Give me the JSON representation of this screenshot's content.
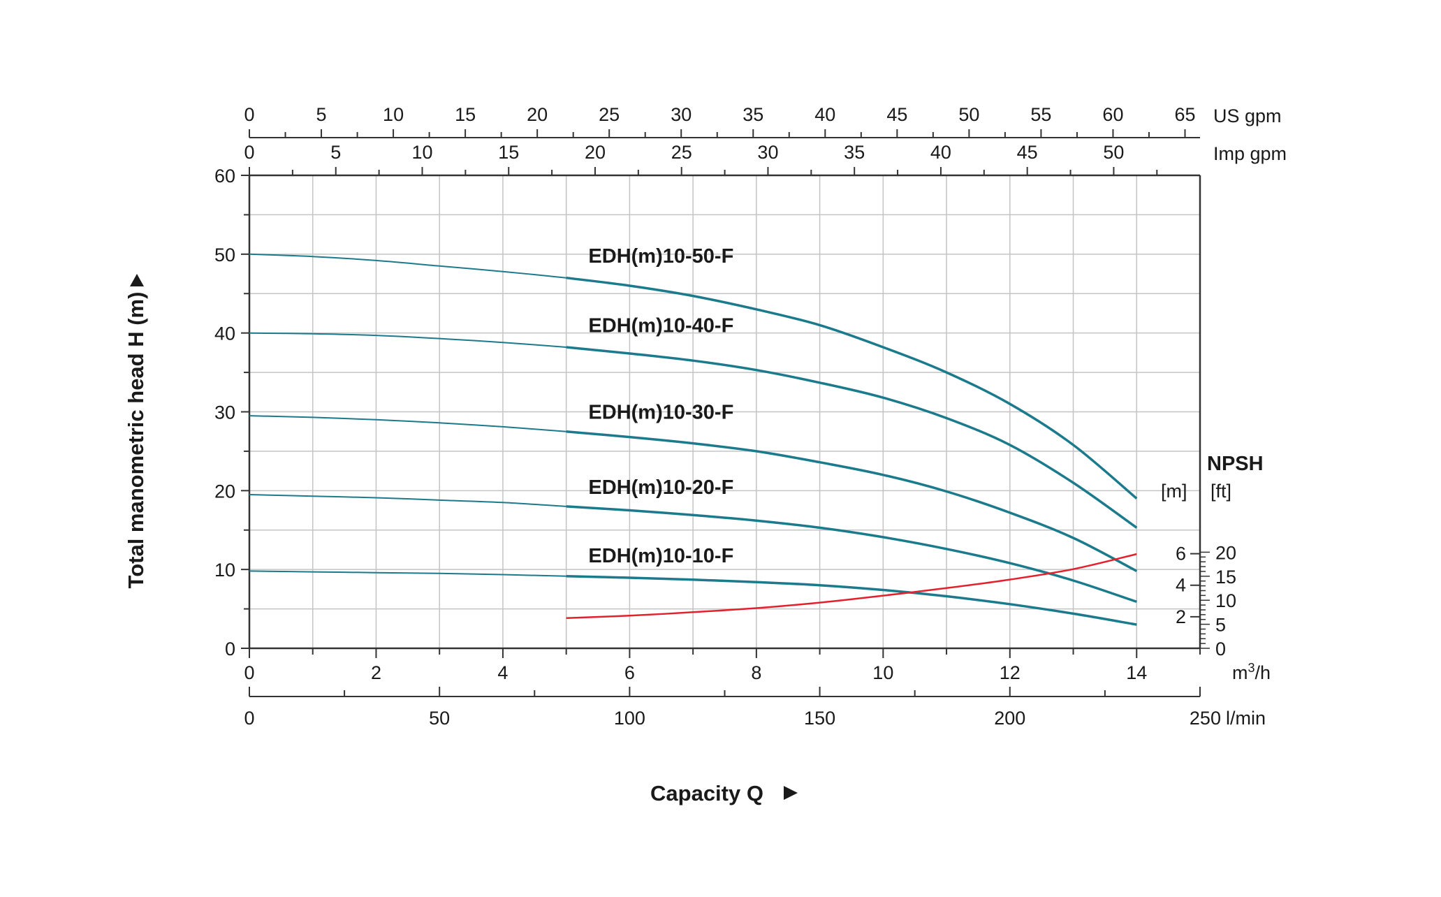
{
  "chart_data": {
    "type": "line",
    "x_unit": "m3/h",
    "xlabel": "Capacity Q",
    "ylabel": "Total manometric head H (m)",
    "xlim": [
      0,
      15
    ],
    "ylim": [
      0,
      60
    ],
    "x_ticks": [
      0,
      2,
      4,
      6,
      8,
      10,
      12,
      14
    ],
    "y_ticks": [
      0,
      10,
      20,
      30,
      40,
      50,
      60
    ],
    "grid": true,
    "top_axes": [
      {
        "unit": "US gpm",
        "factor": 4.4029,
        "ticks": [
          0,
          5,
          10,
          15,
          20,
          25,
          30,
          35,
          40,
          45,
          50,
          55,
          60,
          65
        ]
      },
      {
        "unit": "Imp gpm",
        "factor": 3.6662,
        "ticks": [
          0,
          5,
          10,
          15,
          20,
          25,
          30,
          35,
          40,
          45,
          50
        ]
      }
    ],
    "bottom_axis2": {
      "unit": "l/min",
      "factor": 16.667,
      "ticks": [
        0,
        50,
        100,
        150,
        200,
        250
      ]
    },
    "series": [
      {
        "name": "EDH(m)10-50-F",
        "color": "#1b7a8c",
        "label_at": [
          5.35,
          48.9
        ],
        "x": [
          0,
          1,
          2,
          3,
          4,
          5,
          6,
          7,
          8,
          9,
          10,
          11,
          12,
          13,
          14
        ],
        "y": [
          50,
          49.7,
          49.2,
          48.5,
          47.8,
          47,
          46,
          44.7,
          43,
          41,
          38.2,
          35,
          31,
          25.8,
          19
        ]
      },
      {
        "name": "EDH(m)10-40-F",
        "color": "#1b7a8c",
        "label_at": [
          5.35,
          40.1
        ],
        "x": [
          0,
          1,
          2,
          3,
          4,
          5,
          6,
          7,
          8,
          9,
          10,
          11,
          12,
          13,
          14
        ],
        "y": [
          40,
          39.9,
          39.7,
          39.3,
          38.8,
          38.2,
          37.4,
          36.5,
          35.3,
          33.7,
          31.8,
          29.2,
          25.8,
          21,
          15.3
        ]
      },
      {
        "name": "EDH(m)10-30-F",
        "color": "#1b7a8c",
        "label_at": [
          5.35,
          29.1
        ],
        "x": [
          0,
          1,
          2,
          3,
          4,
          5,
          6,
          7,
          8,
          9,
          10,
          11,
          12,
          13,
          14
        ],
        "y": [
          29.5,
          29.3,
          29,
          28.6,
          28.1,
          27.5,
          26.8,
          26,
          25,
          23.6,
          22,
          19.9,
          17.2,
          14,
          9.8
        ]
      },
      {
        "name": "EDH(m)10-20-F",
        "color": "#1b7a8c",
        "label_at": [
          5.35,
          19.6
        ],
        "x": [
          0,
          1,
          2,
          3,
          4,
          5,
          6,
          7,
          8,
          9,
          10,
          11,
          12,
          13,
          14
        ],
        "y": [
          19.5,
          19.3,
          19.1,
          18.8,
          18.5,
          18,
          17.5,
          16.9,
          16.2,
          15.3,
          14.1,
          12.6,
          10.8,
          8.6,
          5.9
        ]
      },
      {
        "name": "EDH(m)10-10-F",
        "color": "#1b7a8c",
        "label_at": [
          5.35,
          10.9
        ],
        "x": [
          0,
          1,
          2,
          3,
          4,
          5,
          6,
          7,
          8,
          9,
          10,
          11,
          12,
          13,
          14
        ],
        "y": [
          9.8,
          9.7,
          9.6,
          9.5,
          9.35,
          9.15,
          8.95,
          8.7,
          8.4,
          8,
          7.4,
          6.6,
          5.6,
          4.4,
          3
        ]
      }
    ],
    "npsh": {
      "title": "NPSH",
      "unit_m": "[m]",
      "unit_ft": "[ft]",
      "scale_m_per_head_m": 0.5,
      "ticks_m": [
        2,
        4,
        6
      ],
      "ticks_ft": [
        0,
        5,
        10,
        15,
        20
      ],
      "color": "#e3202b",
      "x": [
        5,
        6,
        7,
        8,
        9,
        10,
        11,
        12,
        13,
        14
      ],
      "y_m": [
        1.92,
        2.07,
        2.29,
        2.55,
        2.9,
        3.34,
        3.82,
        4.36,
        5.02,
        5.98
      ]
    }
  }
}
